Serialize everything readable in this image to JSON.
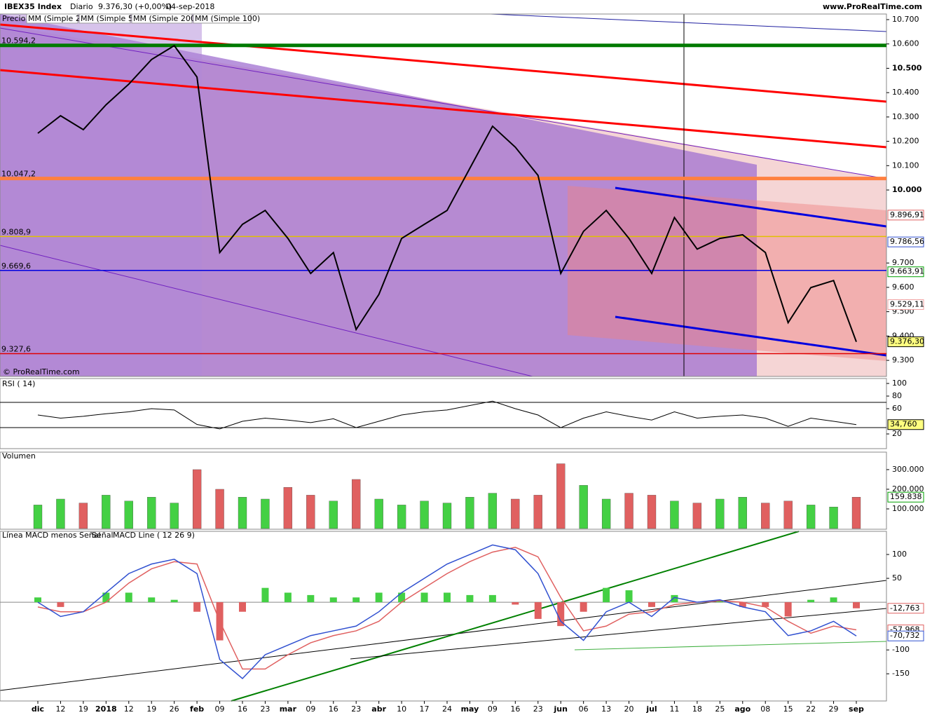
{
  "header": {
    "title": "IBEX35 Index",
    "period": "Diario",
    "quote": "9.376,30 (+0,00%)",
    "date": "04-sep-2018",
    "site": "www.ProRealTime.com",
    "copyright": "© ProRealTime.com"
  },
  "chart_data": [
    {
      "type": "line",
      "title": "Precio",
      "legend": [
        "MM (Simple 20)",
        "MM (Simple 50)",
        "MM (Simple 200)",
        "MM (Simple 100)"
      ],
      "legend_colors": [
        "#f0a0a0",
        "#00a000",
        "#e06060",
        "#3050d0"
      ],
      "categories": [
        "dic",
        "12",
        "19",
        "2018",
        "12",
        "19",
        "26",
        "feb",
        "09",
        "16",
        "23",
        "mar",
        "09",
        "16",
        "23",
        "abr",
        "10",
        "17",
        "24",
        "may",
        "09",
        "16",
        "23",
        "jun",
        "06",
        "13",
        "20",
        "jul",
        "11",
        "18",
        "25",
        "ago",
        "08",
        "15",
        "22",
        "29",
        "sep"
      ],
      "values": [
        10233,
        10305,
        10248,
        10350,
        10435,
        10536,
        10593,
        10464,
        9743,
        9859,
        9916,
        9801,
        9657,
        9743,
        9427,
        9571,
        9801,
        9859,
        9916,
        10089,
        10262,
        10176,
        10060,
        9657,
        9830,
        9916,
        9801,
        9657,
        9887,
        9757,
        9801,
        9816,
        9743,
        9455,
        9599,
        9628,
        9376.3
      ],
      "color": "#000000",
      "ylim": [
        9234,
        10723
      ],
      "yticks": [
        {
          "value": 10700,
          "label": "10.700"
        },
        {
          "value": 10600,
          "label": "10.600"
        },
        {
          "value": 10500,
          "label": "10.500"
        },
        {
          "value": 10400,
          "label": "10.400"
        },
        {
          "value": 10300,
          "label": "10.300"
        },
        {
          "value": 10200,
          "label": "10.200"
        },
        {
          "value": 10100,
          "label": "10.100"
        },
        {
          "value": 10000,
          "label": "10.000"
        },
        {
          "value": 9700,
          "label": "9.700"
        },
        {
          "value": 9600,
          "label": "9.600"
        },
        {
          "value": 9500,
          "label": "9.500"
        },
        {
          "value": 9400,
          "label": "9.400"
        },
        {
          "value": 9300,
          "label": "9.300"
        }
      ],
      "levels": [
        {
          "value": 10594.2,
          "label": "10.594,2",
          "color": "#007a00"
        },
        {
          "value": 10047.2,
          "label": "10.047,2",
          "color": "#ff8040"
        },
        {
          "value": 9808.9,
          "label": "9.808,9",
          "color": "#e0c000"
        },
        {
          "value": 9669.6,
          "label": "9.669,6",
          "color": "#0000e0"
        },
        {
          "value": 9327.6,
          "label": "9.327,6",
          "color": "#e00000"
        }
      ],
      "value_boxes": [
        {
          "value": 9896.91,
          "label": "9.896,91",
          "color": "#e06060"
        },
        {
          "value": 9786.56,
          "label": "9.786,56",
          "color": "#3050d0"
        },
        {
          "value": 9663.91,
          "label": "9.663,91",
          "color": "#00a000"
        },
        {
          "value": 9529.11,
          "label": "9.529,11",
          "color": "#f0a0a0"
        },
        {
          "value": 9376.3,
          "label": "9.376,30",
          "color": "#000000"
        }
      ]
    },
    {
      "type": "line",
      "title": "RSI ( 14)",
      "color": "#000000",
      "values": [
        50,
        45,
        48,
        52,
        55,
        60,
        58,
        35,
        28,
        40,
        45,
        42,
        38,
        44,
        30,
        40,
        50,
        55,
        58,
        65,
        72,
        60,
        50,
        30,
        45,
        55,
        48,
        42,
        55,
        45,
        48,
        50,
        45,
        32,
        45,
        40,
        34.76
      ],
      "ylim": [
        -3.3,
        107.8
      ],
      "yticks": [
        100,
        80,
        60,
        20
      ],
      "bands": [
        70,
        30
      ],
      "value_boxes": [
        {
          "value": 34.76,
          "label": "34,760",
          "color": "#000000"
        }
      ]
    },
    {
      "type": "bar",
      "title": "Volumen",
      "up_color": "#44d044",
      "down_color": "#e06060",
      "values": [
        120000,
        150000,
        130000,
        170000,
        140000,
        160000,
        130000,
        300000,
        200000,
        160000,
        150000,
        210000,
        170000,
        140000,
        250000,
        150000,
        120000,
        140000,
        130000,
        160000,
        180000,
        150000,
        170000,
        330000,
        220000,
        150000,
        180000,
        170000,
        140000,
        130000,
        150000,
        160000,
        130000,
        140000,
        120000,
        110000,
        159838
      ],
      "ylim": [
        0,
        389000
      ],
      "yticks": [
        {
          "value": 300000,
          "label": "300.000"
        },
        {
          "value": 200000,
          "label": "200.000"
        },
        {
          "value": 100000,
          "label": "100.000"
        }
      ],
      "value_boxes": [
        {
          "value": 159838,
          "label": "159.838",
          "color": "#00a000"
        }
      ]
    },
    {
      "type": "macd",
      "ylim": [
        -207,
        148.5
      ],
      "yticks": [
        100,
        50,
        -100,
        -150
      ],
      "positive_color": "#44d044",
      "series": [
        {
          "name": "Línea MACD menos Señal",
          "color": "#e06060",
          "values": [
            10,
            -10,
            0,
            20,
            20,
            10,
            5,
            -20,
            -80,
            -20,
            30,
            20,
            15,
            10,
            10,
            20,
            20,
            20,
            20,
            15,
            15,
            -5,
            -35,
            -50,
            -20,
            30,
            25,
            -10,
            15,
            0,
            2,
            -10,
            -10,
            -30,
            5,
            10,
            -12.763
          ]
        },
        {
          "name": "Señal",
          "color": "#e06060",
          "values": [
            -10,
            -20,
            -20,
            0,
            40,
            70,
            85,
            80,
            -40,
            -140,
            -140,
            -110,
            -85,
            -70,
            -60,
            -40,
            0,
            30,
            60,
            85,
            105,
            115,
            95,
            10,
            -60,
            -50,
            -25,
            -20,
            -5,
            0,
            3,
            0,
            -10,
            -40,
            -65,
            -50,
            -57.968
          ]
        },
        {
          "name": "MACD Line ( 12 26 9)",
          "color": "#3050d0",
          "values": [
            0,
            -30,
            -20,
            20,
            60,
            80,
            90,
            60,
            -120,
            -160,
            -110,
            -90,
            -70,
            -60,
            -50,
            -20,
            20,
            50,
            80,
            100,
            120,
            110,
            60,
            -40,
            -80,
            -20,
            0,
            -30,
            10,
            0,
            5,
            -10,
            -20,
            -70,
            -60,
            -40,
            -70.732
          ]
        }
      ],
      "value_boxes": [
        {
          "value": -12.763,
          "label": "-12,763",
          "color": "#e06060"
        },
        {
          "value": -57.968,
          "label": "-57,968",
          "color": "#e06060"
        },
        {
          "value": -70.732,
          "label": "-70,732",
          "color": "#3050d0"
        }
      ]
    }
  ]
}
